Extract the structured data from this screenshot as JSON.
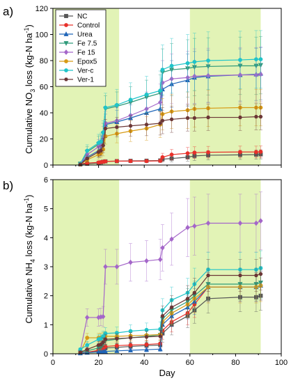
{
  "chart_data": [
    {
      "type": "line",
      "panel_label": "a)",
      "ylabel_parts": [
        "Cumulative NO",
        "3",
        " loss (kg-N ha",
        "-1",
        ")"
      ],
      "xlim": [
        0,
        100
      ],
      "ylim": [
        0,
        120
      ],
      "yticks": [
        0,
        20,
        40,
        60,
        80,
        100,
        120
      ],
      "shaded_x_ranges": [
        [
          0,
          29
        ],
        [
          60,
          91
        ]
      ],
      "x": [
        12,
        15,
        20,
        21,
        22,
        23,
        28,
        34,
        41,
        47,
        48,
        52,
        59,
        62,
        68,
        82,
        89,
        91
      ],
      "series": [
        {
          "name": "NC",
          "color": "#555555",
          "marker": "square",
          "values": [
            0.5,
            1.0,
            1.5,
            2.0,
            2.5,
            2.8,
            3.0,
            3.2,
            3.3,
            3.5,
            4.5,
            5.0,
            6.0,
            7.0,
            7.5,
            7.8,
            8.0,
            8.2
          ],
          "err": [
            0.3,
            0.5,
            0.6,
            0.6,
            0.8,
            1.0,
            1.0,
            1.0,
            1.0,
            1.2,
            2.0,
            2.5,
            3.0,
            3.5,
            3.5,
            3.5,
            3.5,
            3.5
          ]
        },
        {
          "name": "Control",
          "color": "#e8302a",
          "marker": "circle",
          "values": [
            1.0,
            1.5,
            2.0,
            2.2,
            2.5,
            2.8,
            3.0,
            3.0,
            3.0,
            3.2,
            6.0,
            8.0,
            9.0,
            9.5,
            9.8,
            10.0,
            10.0,
            10.2
          ],
          "err": [
            0.4,
            0.6,
            0.8,
            0.8,
            1.0,
            1.0,
            1.0,
            1.0,
            1.0,
            1.2,
            3.0,
            4.0,
            4.5,
            4.5,
            4.5,
            4.5,
            4.5,
            4.5
          ]
        },
        {
          "name": "Urea",
          "color": "#1f65b8",
          "marker": "triangle",
          "values": [
            1.0,
            6.0,
            11.0,
            12.0,
            18.0,
            31.0,
            33.0,
            36.0,
            40.0,
            43.0,
            58.0,
            62.0,
            65.0,
            67.0,
            68.0,
            69.0,
            69.5,
            70.0
          ],
          "err": [
            0.5,
            3.0,
            5.0,
            5.0,
            7.0,
            8.0,
            9.0,
            10.0,
            12.0,
            13.0,
            16.0,
            18.0,
            20.0,
            20.0,
            20.0,
            20.0,
            20.0,
            20.0
          ]
        },
        {
          "name": "Fe 7.5",
          "color": "#2f9a7a",
          "marker": "triangle-down",
          "values": [
            1.0,
            10.0,
            16.0,
            17.0,
            24.0,
            43.0,
            45.0,
            48.0,
            52.0,
            55.0,
            71.0,
            73.0,
            74.0,
            75.0,
            75.5,
            76.0,
            76.0,
            76.5
          ],
          "err": [
            0.6,
            4.0,
            6.0,
            6.0,
            8.0,
            10.0,
            11.0,
            12.0,
            13.0,
            14.0,
            18.0,
            20.0,
            22.0,
            22.0,
            22.0,
            22.0,
            22.0,
            22.0
          ]
        },
        {
          "name": "Fe 15",
          "color": "#a466c9",
          "marker": "diamond",
          "values": [
            1.0,
            8.0,
            14.0,
            15.0,
            22.0,
            32.0,
            34.0,
            38.0,
            43.0,
            48.0,
            63.0,
            66.0,
            67.0,
            68.0,
            68.5,
            69.0,
            69.0,
            69.5
          ],
          "err": [
            0.5,
            3.5,
            5.5,
            5.5,
            7.5,
            9.0,
            10.0,
            11.0,
            13.0,
            14.0,
            17.0,
            19.0,
            20.0,
            21.0,
            21.0,
            21.0,
            21.0,
            21.0
          ]
        },
        {
          "name": "Epox5",
          "color": "#d79a14",
          "marker": "circle-left",
          "values": [
            0.5,
            4.0,
            8.0,
            9.0,
            12.0,
            22.0,
            24.0,
            26.0,
            28.0,
            31.0,
            39.0,
            41.0,
            42.0,
            43.0,
            43.5,
            44.0,
            44.0,
            44.0
          ],
          "err": [
            0.4,
            2.0,
            3.5,
            3.5,
            5.0,
            6.0,
            7.0,
            8.0,
            9.0,
            10.0,
            12.0,
            13.0,
            14.0,
            14.0,
            14.0,
            14.0,
            14.0,
            14.0
          ]
        },
        {
          "name": "Ver-c",
          "color": "#1fc4c9",
          "marker": "circle-right",
          "values": [
            1.0,
            11.0,
            17.0,
            18.0,
            25.0,
            44.0,
            46.0,
            50.0,
            54.0,
            57.0,
            73.0,
            76.0,
            78.0,
            79.0,
            80.0,
            80.5,
            81.0,
            81.0
          ],
          "err": [
            0.6,
            4.5,
            6.5,
            6.5,
            9.0,
            11.0,
            12.0,
            13.0,
            14.0,
            15.0,
            19.0,
            21.0,
            22.0,
            22.0,
            22.0,
            22.0,
            22.0,
            22.0
          ]
        },
        {
          "name": "Ver-1",
          "color": "#6b3636",
          "marker": "hexagon",
          "values": [
            0.5,
            5.0,
            10.0,
            11.0,
            15.0,
            28.0,
            29.0,
            30.0,
            31.0,
            32.0,
            34.0,
            35.0,
            36.0,
            36.0,
            36.5,
            36.5,
            37.0,
            37.0
          ],
          "err": [
            0.4,
            2.5,
            4.0,
            4.0,
            5.5,
            7.0,
            7.5,
            8.0,
            8.5,
            9.0,
            10.0,
            10.0,
            10.0,
            10.0,
            10.0,
            10.0,
            10.0,
            10.0
          ]
        }
      ],
      "legend": {
        "placement": "top-left",
        "entries": [
          "NC",
          "Control",
          "Urea",
          "Fe 7.5",
          "Fe 15",
          "Epox5",
          "Ver-c",
          "Ver-1"
        ]
      }
    },
    {
      "type": "line",
      "panel_label": "b)",
      "xlabel": "Day",
      "ylabel_parts": [
        "Cumulative NH",
        "4",
        " loss (kg-N ha",
        "-1",
        ")"
      ],
      "xlim": [
        0,
        100
      ],
      "ylim": [
        0,
        6
      ],
      "xticks": [
        0,
        20,
        40,
        60,
        80,
        100
      ],
      "yticks": [
        0,
        1,
        2,
        3,
        4,
        5,
        6
      ],
      "shaded_x_ranges": [
        [
          0,
          29
        ],
        [
          60,
          91
        ]
      ],
      "x": [
        12,
        15,
        20,
        21,
        22,
        23,
        28,
        34,
        41,
        47,
        48,
        52,
        59,
        62,
        68,
        82,
        89,
        91
      ],
      "series": [
        {
          "name": "NC",
          "color": "#555555",
          "marker": "square",
          "values": [
            0.02,
            0.05,
            0.1,
            0.12,
            0.15,
            0.2,
            0.22,
            0.25,
            0.28,
            0.3,
            0.7,
            1.0,
            1.3,
            1.5,
            1.9,
            1.95,
            1.95,
            2.0
          ],
          "err": [
            0.02,
            0.05,
            0.08,
            0.08,
            0.1,
            0.12,
            0.12,
            0.14,
            0.15,
            0.15,
            0.3,
            0.35,
            0.4,
            0.45,
            0.5,
            0.5,
            0.5,
            0.5
          ]
        },
        {
          "name": "Control",
          "color": "#e8302a",
          "marker": "circle",
          "values": [
            0.02,
            0.05,
            0.12,
            0.14,
            0.18,
            0.25,
            0.28,
            0.3,
            0.32,
            0.35,
            0.8,
            1.1,
            1.4,
            1.7,
            2.3,
            2.3,
            2.3,
            2.35
          ],
          "err": [
            0.02,
            0.05,
            0.08,
            0.08,
            0.1,
            0.12,
            0.12,
            0.14,
            0.15,
            0.15,
            0.3,
            0.35,
            0.4,
            0.45,
            0.5,
            0.5,
            0.5,
            0.5
          ]
        },
        {
          "name": "Urea",
          "color": "#1f65b8",
          "marker": "triangle",
          "values": [
            0.02,
            0.04,
            0.06,
            0.06,
            0.07,
            0.08,
            0.1,
            0.12,
            0.14,
            0.16,
            1.0,
            1.3,
            1.6,
            1.8,
            2.3,
            2.3,
            2.3,
            2.35
          ],
          "err": [
            0.02,
            0.03,
            0.04,
            0.04,
            0.05,
            0.05,
            0.06,
            0.06,
            0.07,
            0.08,
            0.3,
            0.35,
            0.4,
            0.45,
            0.5,
            0.5,
            0.5,
            0.5
          ]
        },
        {
          "name": "Fe 7.5",
          "color": "#2f9a7a",
          "marker": "triangle-down",
          "values": [
            0.05,
            0.1,
            0.2,
            0.22,
            0.35,
            0.45,
            0.5,
            0.55,
            0.6,
            0.65,
            1.2,
            1.5,
            1.8,
            2.0,
            2.4,
            2.4,
            2.4,
            2.45
          ],
          "err": [
            0.03,
            0.06,
            0.1,
            0.1,
            0.12,
            0.15,
            0.15,
            0.18,
            0.2,
            0.2,
            0.35,
            0.4,
            0.45,
            0.5,
            0.55,
            0.55,
            0.55,
            0.55
          ]
        },
        {
          "name": "Fe 15",
          "color": "#a466c9",
          "marker": "diamond",
          "values": [
            0.1,
            1.25,
            1.25,
            1.27,
            1.28,
            3.0,
            3.0,
            3.15,
            3.2,
            3.25,
            3.65,
            3.95,
            4.35,
            4.4,
            4.5,
            4.5,
            4.5,
            4.58
          ],
          "err": [
            0.05,
            0.3,
            0.3,
            0.3,
            0.35,
            0.6,
            0.6,
            0.65,
            0.7,
            0.7,
            0.8,
            0.9,
            1.0,
            1.0,
            1.0,
            1.0,
            1.0,
            1.0
          ]
        },
        {
          "name": "Epox5",
          "color": "#d79a14",
          "marker": "circle-left",
          "values": [
            0.05,
            0.55,
            0.55,
            0.56,
            0.58,
            0.6,
            0.6,
            0.62,
            0.64,
            0.66,
            1.1,
            1.4,
            1.7,
            1.9,
            2.3,
            2.3,
            2.3,
            2.35
          ],
          "err": [
            0.03,
            0.15,
            0.15,
            0.15,
            0.16,
            0.17,
            0.17,
            0.18,
            0.2,
            0.2,
            0.35,
            0.4,
            0.45,
            0.5,
            0.55,
            0.55,
            0.55,
            0.55
          ]
        },
        {
          "name": "Ver-c",
          "color": "#1fc4c9",
          "marker": "circle-right",
          "values": [
            0.15,
            0.3,
            0.5,
            0.52,
            0.6,
            0.7,
            0.72,
            0.78,
            0.82,
            0.85,
            1.5,
            1.85,
            2.1,
            2.4,
            2.9,
            2.9,
            2.9,
            2.95
          ],
          "err": [
            0.05,
            0.12,
            0.15,
            0.15,
            0.18,
            0.2,
            0.2,
            0.22,
            0.24,
            0.25,
            0.4,
            0.45,
            0.5,
            0.55,
            0.6,
            0.6,
            0.6,
            0.6
          ]
        },
        {
          "name": "Ver-1",
          "color": "#6b3636",
          "marker": "hexagon",
          "values": [
            0.05,
            0.15,
            0.3,
            0.32,
            0.4,
            0.5,
            0.52,
            0.55,
            0.58,
            0.6,
            1.3,
            1.6,
            1.9,
            2.1,
            2.7,
            2.7,
            2.7,
            2.75
          ],
          "err": [
            0.03,
            0.08,
            0.12,
            0.12,
            0.15,
            0.17,
            0.17,
            0.18,
            0.2,
            0.2,
            0.35,
            0.4,
            0.45,
            0.5,
            0.55,
            0.55,
            0.55,
            0.55
          ]
        }
      ]
    }
  ],
  "colors": {
    "shade": "#e2f3b6",
    "background": "#ffffff",
    "axis": "#000000"
  }
}
